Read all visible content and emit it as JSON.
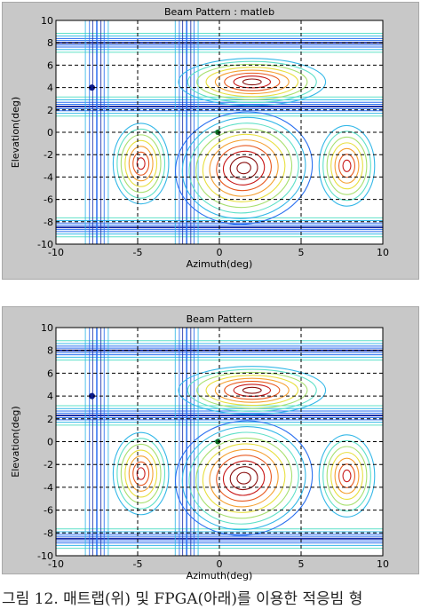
{
  "chart_data": [
    {
      "type": "contour",
      "title": "Beam Pattern : matleb",
      "xlabel": "Azimuth(deg)",
      "ylabel": "Elevation(deg)",
      "xlim": [
        -10,
        10
      ],
      "ylim": [
        -10,
        10
      ],
      "xticks": [
        "-10",
        "-5",
        "0",
        "5",
        "10"
      ],
      "yticks": [
        "10",
        "8",
        "6",
        "4",
        "2",
        "0",
        "-2",
        "-4",
        "-6",
        "-8",
        "-10"
      ],
      "grid": true,
      "peaks": [
        {
          "x": 1.5,
          "y": -3.2,
          "level": "max"
        },
        {
          "x": 2.0,
          "y": 4.5,
          "level": "high"
        },
        {
          "x": -4.8,
          "y": -2.8,
          "level": "mid"
        },
        {
          "x": 7.8,
          "y": -3.0,
          "level": "mid"
        }
      ],
      "nulls_y": [
        8.0,
        2.3,
        -8.5
      ],
      "nulls_x": [
        -7.5,
        -2.0
      ]
    },
    {
      "type": "contour",
      "title": "Beam Pattern",
      "xlabel": "Azimuth(deg)",
      "ylabel": "Elevation(deg)",
      "xlim": [
        -10,
        10
      ],
      "ylim": [
        -10,
        10
      ],
      "xticks": [
        "-10",
        "-5",
        "0",
        "5",
        "10"
      ],
      "yticks": [
        "10",
        "8",
        "6",
        "4",
        "2",
        "0",
        "-2",
        "-4",
        "-6",
        "-8",
        "-10"
      ],
      "grid": true,
      "peaks": [
        {
          "x": 1.5,
          "y": -3.2,
          "level": "max"
        },
        {
          "x": 2.0,
          "y": 4.5,
          "level": "high"
        },
        {
          "x": -4.8,
          "y": -2.8,
          "level": "mid"
        },
        {
          "x": 7.8,
          "y": -3.0,
          "level": "mid"
        }
      ],
      "nulls_y": [
        8.0,
        2.3,
        -8.5
      ],
      "nulls_x": [
        -7.5,
        -2.0
      ]
    }
  ],
  "caption": "그림 12. 매트랩(위) 및 FPGA(아래)를 이용한 적응빔 형",
  "colors": {
    "contour_levels": [
      "#1a2fa8",
      "#2a6ff0",
      "#34b8e8",
      "#5fe0c8",
      "#a8e070",
      "#e8e040",
      "#f5a030",
      "#e85a20",
      "#c81818",
      "#8a1010"
    ]
  }
}
